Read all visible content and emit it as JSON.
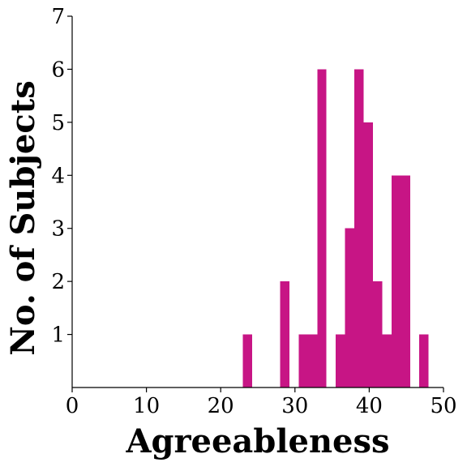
{
  "chart_data": {
    "type": "bar",
    "xlabel": "Agreeableness",
    "ylabel": "No. of Subjects",
    "xlim": [
      0,
      50
    ],
    "ylim": [
      0,
      7
    ],
    "xticks": [
      0,
      10,
      20,
      30,
      40,
      50
    ],
    "xtick_labels": [
      "0",
      "10",
      "20",
      "30",
      "40",
      "50"
    ],
    "yticks": [
      1,
      2,
      3,
      4,
      5,
      6,
      7
    ],
    "ytick_labels": [
      "1",
      "2",
      "3",
      "4",
      "5",
      "6",
      "7"
    ],
    "bin_width": 1.25,
    "bars": [
      {
        "x0": 23.0,
        "x1": 24.25,
        "count": 1
      },
      {
        "x0": 28.0,
        "x1": 29.25,
        "count": 2
      },
      {
        "x0": 30.5,
        "x1": 31.75,
        "count": 1
      },
      {
        "x0": 31.75,
        "x1": 33.0,
        "count": 1
      },
      {
        "x0": 33.0,
        "x1": 34.25,
        "count": 6
      },
      {
        "x0": 35.5,
        "x1": 36.75,
        "count": 1
      },
      {
        "x0": 36.75,
        "x1": 38.0,
        "count": 3
      },
      {
        "x0": 38.0,
        "x1": 39.25,
        "count": 6
      },
      {
        "x0": 39.25,
        "x1": 40.5,
        "count": 5
      },
      {
        "x0": 40.5,
        "x1": 41.75,
        "count": 2
      },
      {
        "x0": 41.75,
        "x1": 43.0,
        "count": 1
      },
      {
        "x0": 43.0,
        "x1": 44.25,
        "count": 4
      },
      {
        "x0": 44.25,
        "x1": 45.5,
        "count": 4
      },
      {
        "x0": 46.75,
        "x1": 48.0,
        "count": 1
      }
    ],
    "bar_color": "#c71585",
    "grid": false,
    "legend": "none"
  }
}
